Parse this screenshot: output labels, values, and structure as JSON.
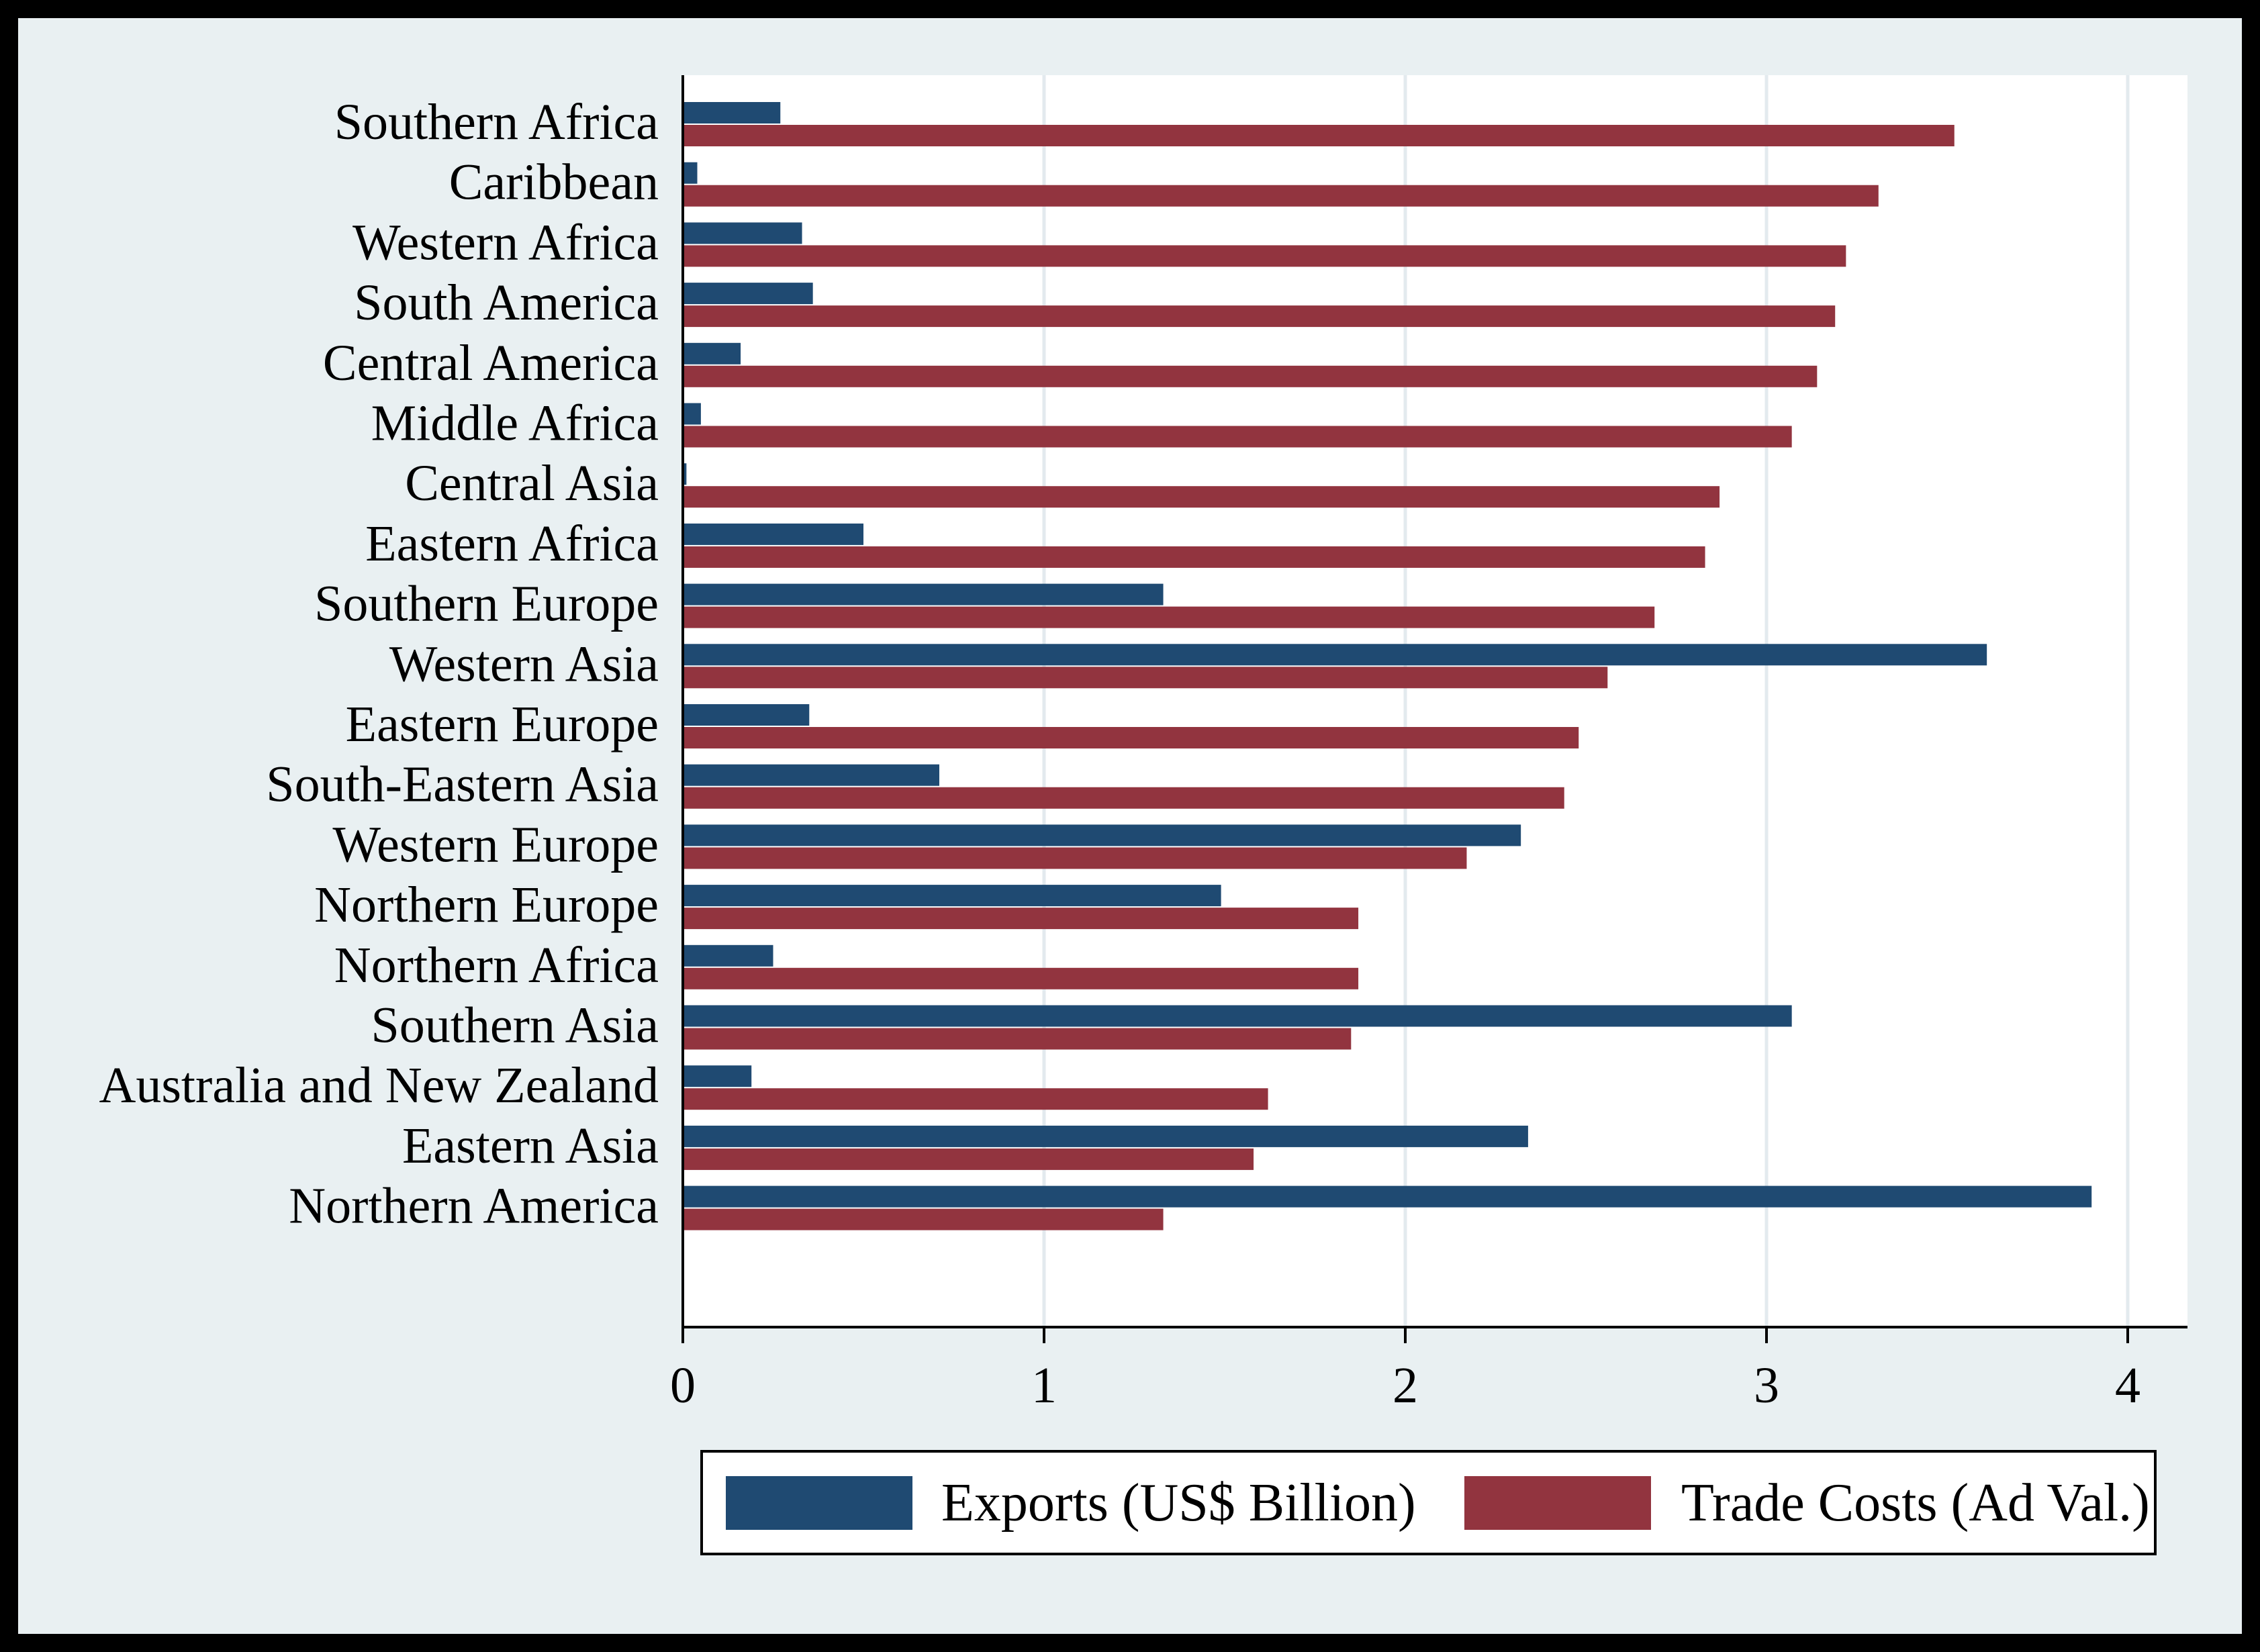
{
  "chart_data": {
    "type": "bar",
    "orientation": "horizontal",
    "categories": [
      "Southern Africa",
      "Caribbean",
      "Western Africa",
      "South America",
      "Central America",
      "Middle Africa",
      "Central Asia",
      "Eastern Africa",
      "Southern Europe",
      "Western Asia",
      "Eastern Europe",
      "South-Eastern Asia",
      "Western Europe",
      "Northern Europe",
      "Northern Africa",
      "Southern Asia",
      "Australia and New Zealand",
      "Eastern Asia",
      "Northern America"
    ],
    "series": [
      {
        "name": "Exports (US$ Billion)",
        "color": "#1f4a72",
        "values": [
          0.27,
          0.04,
          0.33,
          0.36,
          0.16,
          0.05,
          0.01,
          0.5,
          1.33,
          3.61,
          0.35,
          0.71,
          2.32,
          1.49,
          0.25,
          3.07,
          0.19,
          2.34,
          3.9
        ]
      },
      {
        "name": "Trade Costs (Ad Val.)",
        "color": "#92343f",
        "values": [
          3.52,
          3.31,
          3.22,
          3.19,
          3.14,
          3.07,
          2.87,
          2.83,
          2.69,
          2.56,
          2.48,
          2.44,
          2.17,
          1.87,
          1.87,
          1.85,
          1.62,
          1.58,
          1.33
        ]
      }
    ],
    "xticks": [
      "0",
      "1",
      "2",
      "3",
      "4"
    ],
    "xlim": [
      0,
      4.16
    ],
    "title": "",
    "xlabel": "",
    "ylabel": "",
    "grid": "vertical",
    "legend_position": "bottom"
  }
}
